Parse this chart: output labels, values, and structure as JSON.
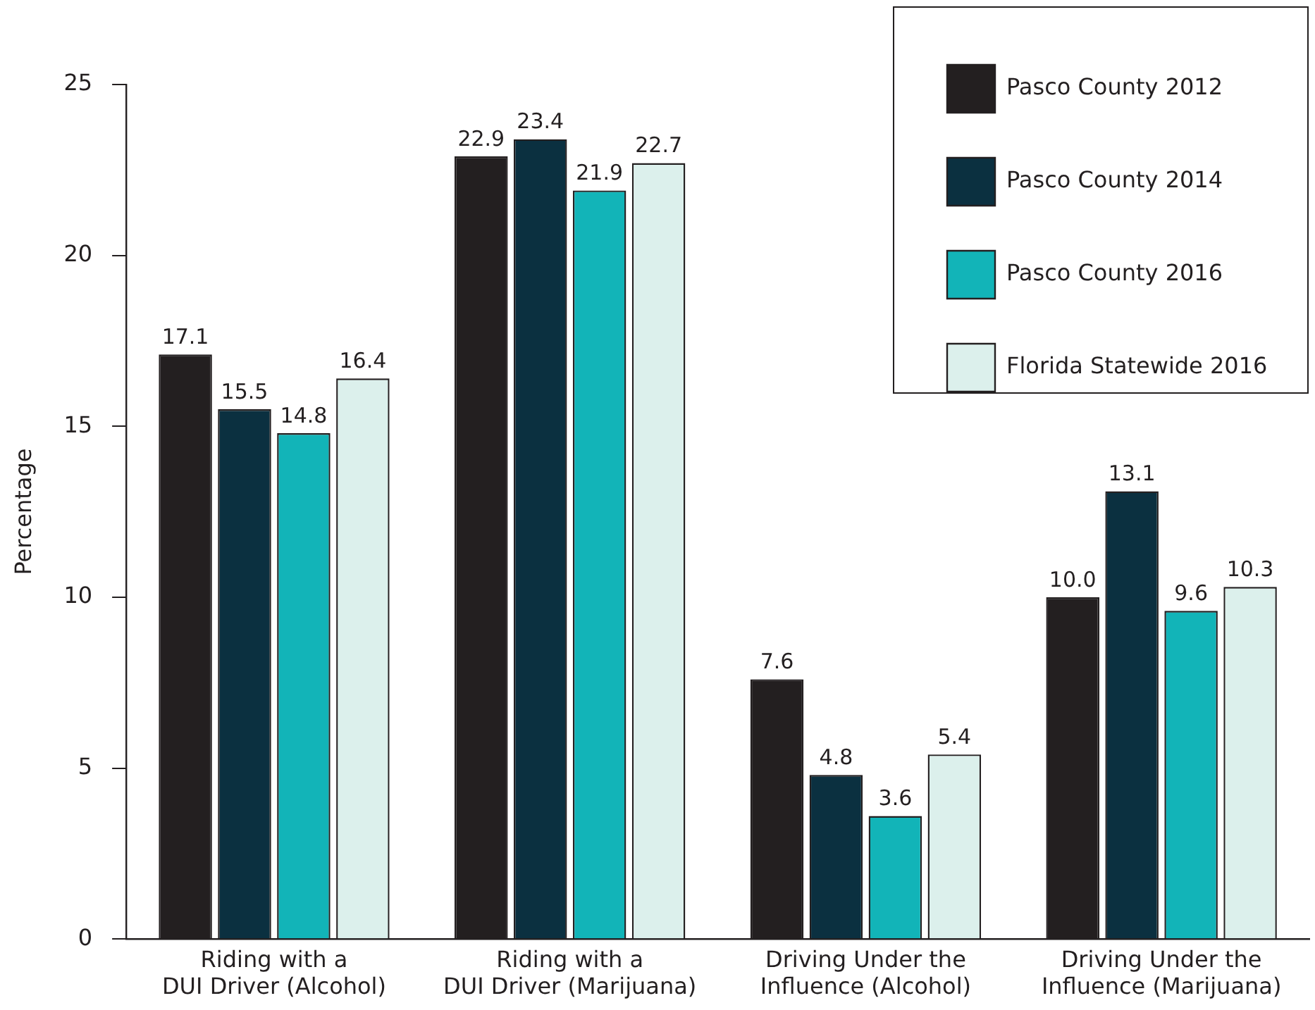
{
  "chart_data": {
    "type": "bar",
    "ylabel": "Percentage",
    "categories": [
      "Riding with a\nDUI Driver (Alcohol)",
      "Riding with a\nDUI Driver (Marijuana)",
      "Driving Under the\nInfluence (Alcohol)",
      "Driving Under the\nInfluence (Marijuana)"
    ],
    "series": [
      {
        "name": "Pasco County 2012",
        "color": "#231f20",
        "values": [
          17.1,
          22.9,
          7.6,
          10.0
        ],
        "value_labels": [
          "17.1",
          "22.9",
          "7.6",
          "10.0"
        ]
      },
      {
        "name": "Pasco County 2014",
        "color": "#0b3040",
        "values": [
          15.5,
          23.4,
          4.8,
          13.1
        ],
        "value_labels": [
          "15.5",
          "23.4",
          "4.8",
          "13.1"
        ]
      },
      {
        "name": "Pasco County 2016",
        "color": "#12b4b8",
        "values": [
          14.8,
          21.9,
          3.6,
          9.6
        ],
        "value_labels": [
          "14.8",
          "21.9",
          "3.6",
          "9.6"
        ]
      },
      {
        "name": "Florida Statewide 2016",
        "color": "#dcf0ec",
        "values": [
          16.4,
          22.7,
          5.4,
          10.3
        ],
        "value_labels": [
          "16.4",
          "22.7",
          "5.4",
          "10.3"
        ]
      }
    ],
    "ylim": [
      0,
      25
    ],
    "yticks": [
      0,
      5,
      10,
      15,
      20,
      25
    ],
    "grid": false,
    "legend": "top right"
  }
}
